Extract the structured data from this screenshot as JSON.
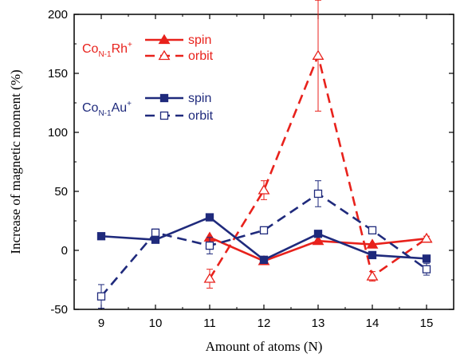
{
  "chart_data": {
    "type": "line",
    "xlabel": "Amount of atoms (N)",
    "ylabel": "Increase of magnetic moment (%)",
    "xlim": [
      8.5,
      15.5
    ],
    "ylim": [
      -50,
      200
    ],
    "xticks": [
      9,
      10,
      11,
      12,
      13,
      14,
      15
    ],
    "yticks": [
      -50,
      0,
      50,
      100,
      150,
      200
    ],
    "grid": false,
    "legend_placement": "top-left",
    "groups": [
      {
        "label_main": "Co",
        "label_sub": "N-1",
        "label_elem": "Rh",
        "label_sup": "+",
        "color": "#e8221c",
        "series": [
          {
            "name": "spin",
            "style": "solid",
            "marker": "filled-triangle",
            "x": [
              11,
              12,
              13,
              14,
              15
            ],
            "y": [
              11,
              -9,
              8,
              5,
              10
            ],
            "err": [
              0,
              0,
              0,
              0,
              0
            ]
          },
          {
            "name": "orbit",
            "style": "dashed",
            "marker": "open-triangle",
            "x": [
              11,
              12,
              13,
              14,
              15
            ],
            "y": [
              -24,
              51,
              165,
              -22,
              10
            ],
            "err": [
              8,
              8,
              47,
              4,
              2
            ]
          }
        ]
      },
      {
        "label_main": "Co",
        "label_sub": "N-1",
        "label_elem": "Au",
        "label_sup": "+",
        "color": "#1f2a7c",
        "series": [
          {
            "name": "spin",
            "style": "solid",
            "marker": "filled-square",
            "x": [
              9,
              10,
              11,
              12,
              13,
              14,
              15
            ],
            "y": [
              12,
              9,
              28,
              -8,
              14,
              -4,
              -7
            ],
            "err": [
              0,
              0,
              0,
              0,
              0,
              0,
              0
            ]
          },
          {
            "name": "orbit",
            "style": "dashed",
            "marker": "open-square",
            "x": [
              9,
              10,
              11,
              12,
              13,
              14,
              15
            ],
            "y": [
              -39,
              15,
              4,
              17,
              48,
              17,
              -16
            ],
            "err": [
              10,
              3,
              7,
              2,
              11,
              2,
              5
            ]
          }
        ]
      }
    ]
  }
}
